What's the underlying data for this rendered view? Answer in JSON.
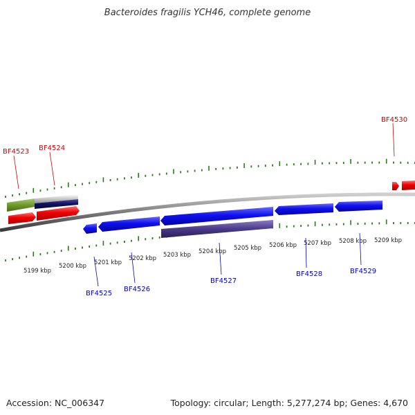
{
  "title": "Bacteroides fragilis YCH46, complete genome",
  "footer": {
    "accession": "Accession: NC_006347",
    "summary": "Topology: circular; Length: 5,277,274 bp; Genes: 4,670"
  },
  "colors": {
    "tick": "#2a7a1a",
    "backbone": "#7a7a7a",
    "red_gene": "#ee0000",
    "blue_gene": "#0000ee",
    "purple_gene": "#4a3a88",
    "olive_gene": "#6f9a2a",
    "navy_gene": "#101060",
    "grey_gene": "#bbbbbb",
    "label_red": "#cc0000",
    "label_blue": "#0000bb"
  },
  "kbp_labels": [
    "5199 kbp",
    "5200 kbp",
    "5201 kbp",
    "5202 kbp",
    "5203 kbp",
    "5204 kbp",
    "5205 kbp",
    "5206 kbp",
    "5207 kbp",
    "5208 kbp",
    "5209 kbp"
  ],
  "gene_labels": [
    {
      "id": "BF4523",
      "color": "red"
    },
    {
      "id": "BF4524",
      "color": "red"
    },
    {
      "id": "BF4530",
      "color": "red"
    },
    {
      "id": "BF4525",
      "color": "blue"
    },
    {
      "id": "BF4526",
      "color": "blue"
    },
    {
      "id": "BF4527",
      "color": "blue"
    },
    {
      "id": "BF4528",
      "color": "blue"
    },
    {
      "id": "BF4529",
      "color": "blue"
    }
  ]
}
